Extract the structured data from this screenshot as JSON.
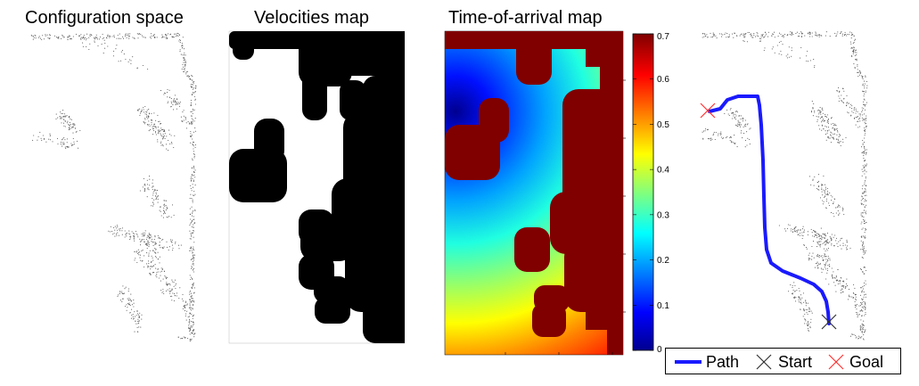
{
  "panels": {
    "config_title": "Configuration space",
    "velocity_title": "Velocities map",
    "toa_title": "Time-of-arrival map"
  },
  "colorbar": {
    "ticks": [
      "0",
      "0.1",
      "0.2",
      "0.3",
      "0.4",
      "0.5",
      "0.6",
      "0.7"
    ],
    "tick_values": [
      0,
      0.1,
      0.2,
      0.3,
      0.4,
      0.5,
      0.6,
      0.7
    ],
    "range": [
      0,
      0.7
    ],
    "colormap": "jet",
    "obstacle_color": "#800000"
  },
  "legend": {
    "path_label": "Path",
    "start_label": "Start",
    "goal_label": "Goal",
    "path_color": "#1a1aff",
    "start_color": "#333333",
    "goal_color": "#ff3333"
  }
}
